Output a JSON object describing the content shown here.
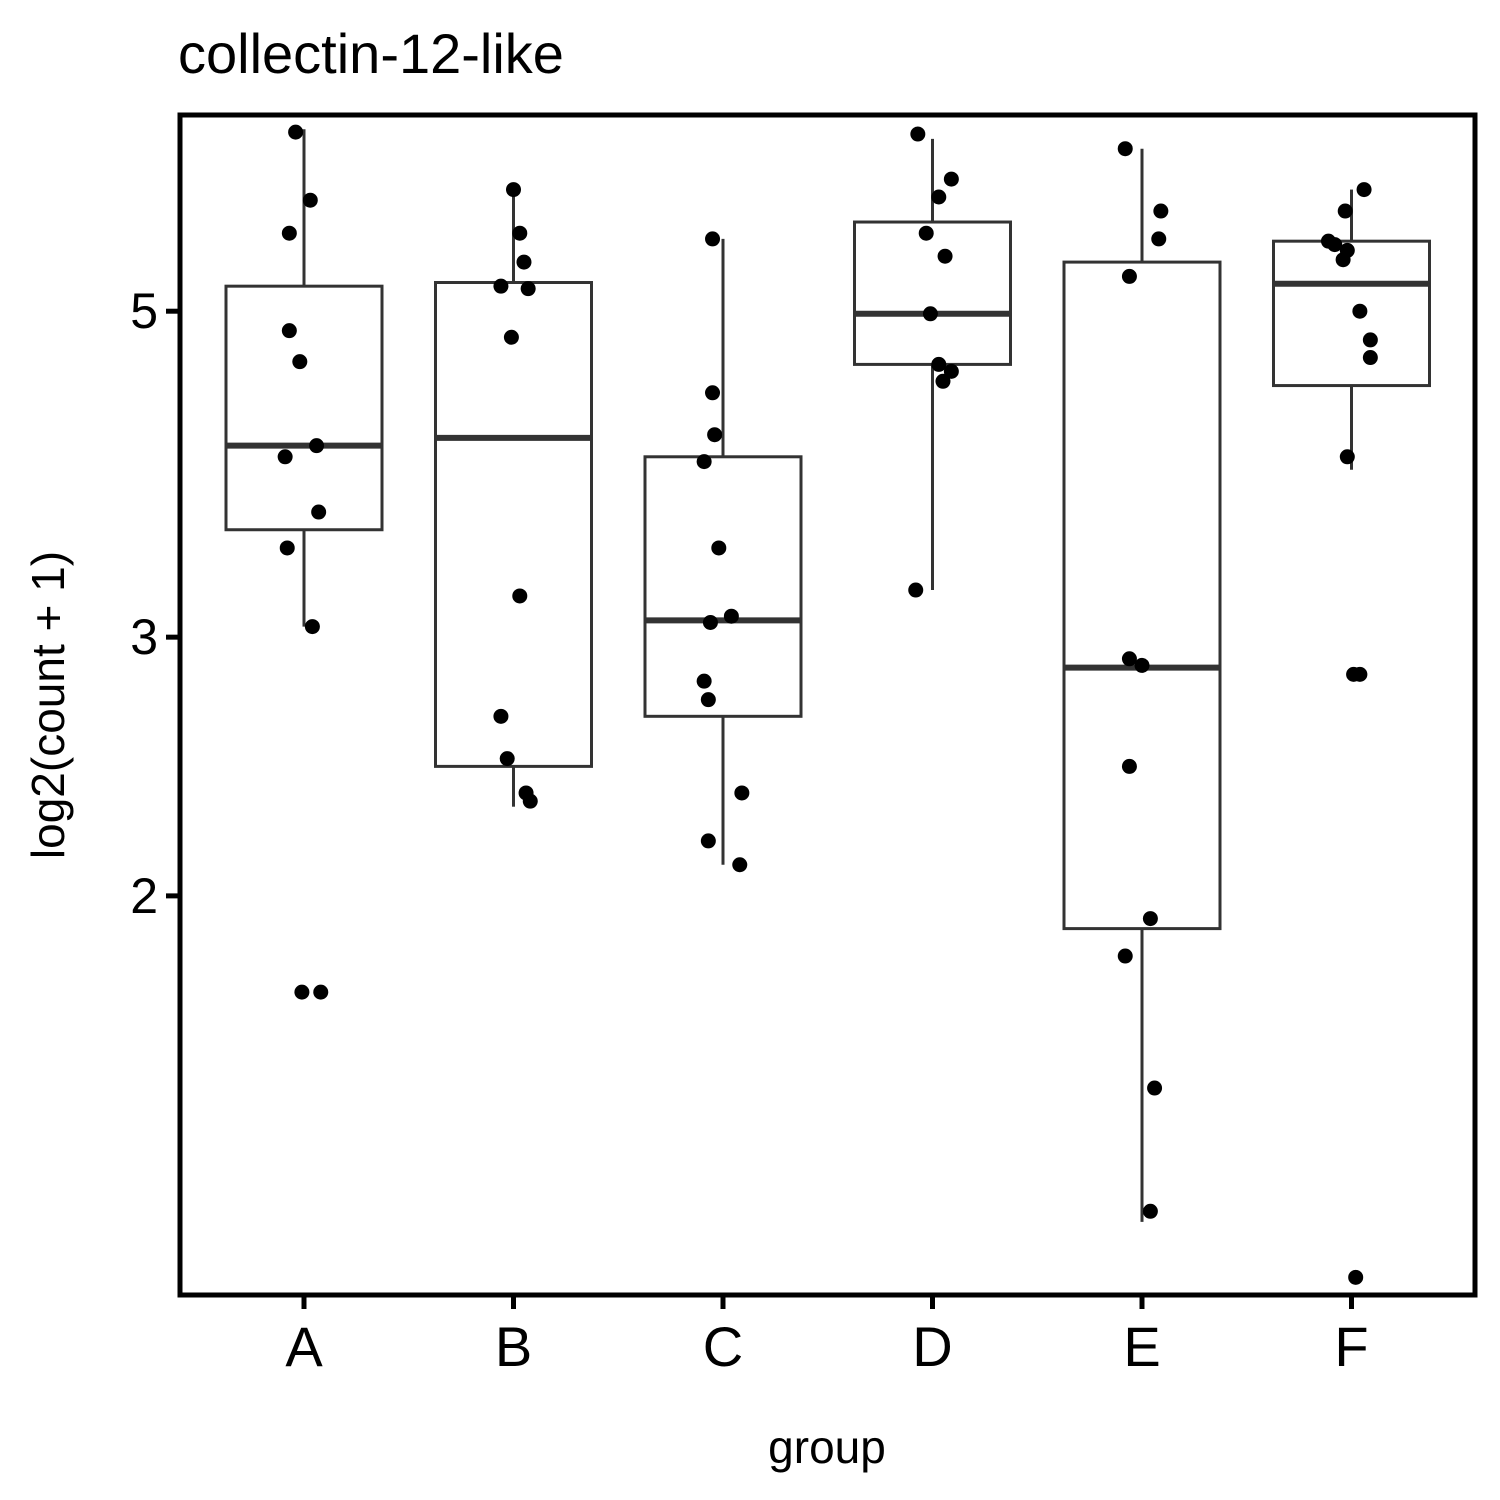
{
  "chart_data": {
    "type": "box",
    "title": "collectin-12-like",
    "xlabel": "group",
    "ylabel": "log2(count + 1)",
    "y_scale": "log2",
    "ylim": [
      1.07,
      6.8
    ],
    "yticks": [
      {
        "value": 2,
        "label": "2"
      },
      {
        "value": 3,
        "label": "3"
      },
      {
        "value": 5,
        "label": "5"
      }
    ],
    "grid": false,
    "legend": "none",
    "categories": [
      "A",
      "B",
      "C",
      "D",
      "E",
      "F"
    ],
    "boxes": [
      {
        "name": "A",
        "lower_whisker": 3.05,
        "q1": 3.55,
        "median": 4.05,
        "q3": 5.2,
        "upper_whisker": 6.65
      },
      {
        "name": "B",
        "lower_whisker": 2.3,
        "q1": 2.45,
        "median": 4.1,
        "q3": 5.23,
        "upper_whisker": 6.05
      },
      {
        "name": "C",
        "lower_whisker": 2.1,
        "q1": 2.65,
        "median": 3.08,
        "q3": 3.98,
        "upper_whisker": 5.6
      },
      {
        "name": "D",
        "lower_whisker": 3.23,
        "q1": 4.6,
        "median": 4.98,
        "q3": 5.75,
        "upper_whisker": 6.55
      },
      {
        "name": "E",
        "lower_whisker": 1.2,
        "q1": 1.9,
        "median": 2.86,
        "q3": 5.4,
        "upper_whisker": 6.45
      },
      {
        "name": "F",
        "lower_whisker": 3.9,
        "q1": 4.45,
        "median": 5.22,
        "q3": 5.58,
        "upper_whisker": 6.05
      }
    ],
    "points": [
      {
        "group": "A",
        "offset": -0.04,
        "y": 6.62
      },
      {
        "group": "A",
        "offset": 0.03,
        "y": 5.95
      },
      {
        "group": "A",
        "offset": -0.07,
        "y": 5.65
      },
      {
        "group": "A",
        "offset": -0.07,
        "y": 4.85
      },
      {
        "group": "A",
        "offset": -0.02,
        "y": 4.62
      },
      {
        "group": "A",
        "offset": 0.06,
        "y": 4.05
      },
      {
        "group": "A",
        "offset": -0.09,
        "y": 3.98
      },
      {
        "group": "A",
        "offset": 0.07,
        "y": 3.65
      },
      {
        "group": "A",
        "offset": -0.08,
        "y": 3.45
      },
      {
        "group": "A",
        "offset": 0.04,
        "y": 3.05
      },
      {
        "group": "A",
        "offset": 0.08,
        "y": 1.72
      },
      {
        "group": "A",
        "offset": -0.01,
        "y": 1.72
      },
      {
        "group": "B",
        "offset": 0.0,
        "y": 6.05
      },
      {
        "group": "B",
        "offset": 0.03,
        "y": 5.65
      },
      {
        "group": "B",
        "offset": 0.05,
        "y": 5.4
      },
      {
        "group": "B",
        "offset": -0.06,
        "y": 5.2
      },
      {
        "group": "B",
        "offset": 0.07,
        "y": 5.18
      },
      {
        "group": "B",
        "offset": -0.01,
        "y": 4.8
      },
      {
        "group": "B",
        "offset": 0.03,
        "y": 3.2
      },
      {
        "group": "B",
        "offset": -0.06,
        "y": 2.65
      },
      {
        "group": "B",
        "offset": -0.03,
        "y": 2.48
      },
      {
        "group": "B",
        "offset": 0.06,
        "y": 2.35
      },
      {
        "group": "B",
        "offset": 0.08,
        "y": 2.32
      },
      {
        "group": "C",
        "offset": -0.05,
        "y": 5.6
      },
      {
        "group": "C",
        "offset": -0.05,
        "y": 4.4
      },
      {
        "group": "C",
        "offset": -0.04,
        "y": 4.12
      },
      {
        "group": "C",
        "offset": -0.09,
        "y": 3.95
      },
      {
        "group": "C",
        "offset": -0.02,
        "y": 3.45
      },
      {
        "group": "C",
        "offset": 0.04,
        "y": 3.1
      },
      {
        "group": "C",
        "offset": -0.06,
        "y": 3.07
      },
      {
        "group": "C",
        "offset": -0.09,
        "y": 2.8
      },
      {
        "group": "C",
        "offset": -0.07,
        "y": 2.72
      },
      {
        "group": "C",
        "offset": 0.09,
        "y": 2.35
      },
      {
        "group": "C",
        "offset": -0.07,
        "y": 2.18
      },
      {
        "group": "C",
        "offset": 0.08,
        "y": 2.1
      },
      {
        "group": "D",
        "offset": -0.07,
        "y": 6.6
      },
      {
        "group": "D",
        "offset": 0.09,
        "y": 6.15
      },
      {
        "group": "D",
        "offset": 0.03,
        "y": 5.98
      },
      {
        "group": "D",
        "offset": -0.03,
        "y": 5.65
      },
      {
        "group": "D",
        "offset": 0.06,
        "y": 5.45
      },
      {
        "group": "D",
        "offset": -0.01,
        "y": 4.98
      },
      {
        "group": "D",
        "offset": 0.03,
        "y": 4.6
      },
      {
        "group": "D",
        "offset": 0.09,
        "y": 4.55
      },
      {
        "group": "D",
        "offset": 0.05,
        "y": 4.48
      },
      {
        "group": "D",
        "offset": -0.08,
        "y": 3.23
      },
      {
        "group": "E",
        "offset": -0.08,
        "y": 6.45
      },
      {
        "group": "E",
        "offset": 0.09,
        "y": 5.85
      },
      {
        "group": "E",
        "offset": 0.08,
        "y": 5.6
      },
      {
        "group": "E",
        "offset": -0.06,
        "y": 5.28
      },
      {
        "group": "E",
        "offset": -0.06,
        "y": 2.9
      },
      {
        "group": "E",
        "offset": 0.0,
        "y": 2.87
      },
      {
        "group": "E",
        "offset": -0.06,
        "y": 2.45
      },
      {
        "group": "E",
        "offset": 0.04,
        "y": 1.93
      },
      {
        "group": "E",
        "offset": -0.08,
        "y": 1.82
      },
      {
        "group": "E",
        "offset": 0.06,
        "y": 1.48
      },
      {
        "group": "E",
        "offset": 0.04,
        "y": 1.22
      },
      {
        "group": "F",
        "offset": 0.06,
        "y": 6.05
      },
      {
        "group": "F",
        "offset": -0.03,
        "y": 5.85
      },
      {
        "group": "F",
        "offset": -0.11,
        "y": 5.58
      },
      {
        "group": "F",
        "offset": -0.08,
        "y": 5.55
      },
      {
        "group": "F",
        "offset": -0.02,
        "y": 5.5
      },
      {
        "group": "F",
        "offset": -0.04,
        "y": 5.42
      },
      {
        "group": "F",
        "offset": 0.04,
        "y": 5.0
      },
      {
        "group": "F",
        "offset": 0.09,
        "y": 4.78
      },
      {
        "group": "F",
        "offset": 0.09,
        "y": 4.65
      },
      {
        "group": "F",
        "offset": -0.02,
        "y": 3.98
      },
      {
        "group": "F",
        "offset": 0.01,
        "y": 2.83
      },
      {
        "group": "F",
        "offset": 0.04,
        "y": 2.83
      },
      {
        "group": "F",
        "offset": 0.02,
        "y": 1.1
      }
    ]
  }
}
